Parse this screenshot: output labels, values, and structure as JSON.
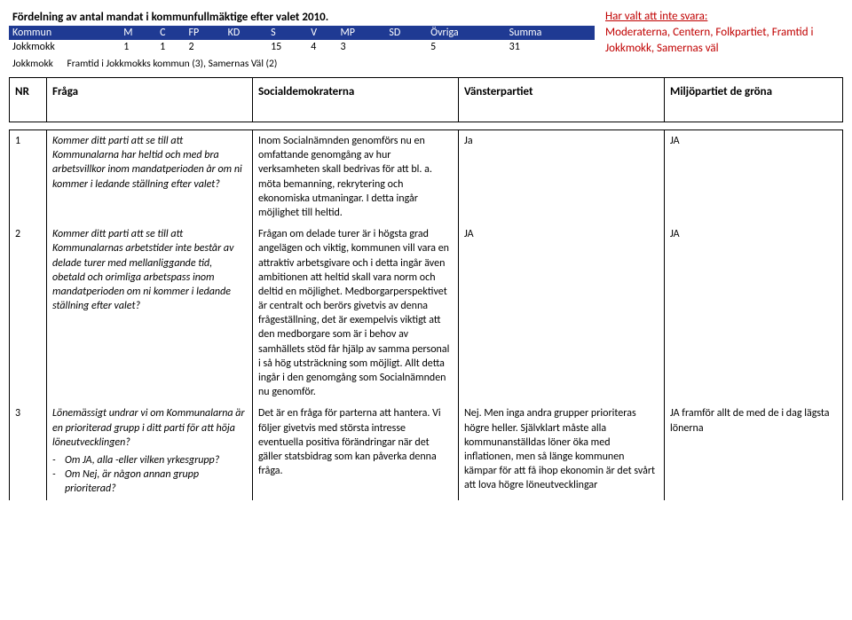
{
  "mandat": {
    "title": "Fördelning av antal mandat i kommunfullmäktige efter valet 2010.",
    "columns": [
      "Kommun",
      "M",
      "C",
      "FP",
      "KD",
      "S",
      "V",
      "MP",
      "SD",
      "Övriga",
      "Summa"
    ],
    "rows": [
      [
        "Jokkmokk",
        "1",
        "1",
        "2",
        "",
        "15",
        "4",
        "3",
        "",
        "5",
        "31"
      ]
    ],
    "note_label": "Jokkmokk",
    "note_text": "Framtid i Jokkmokks kommun (3), Samernas Väl (2)"
  },
  "notice": {
    "heading": "Har valt att inte svara:",
    "body": "Moderaterna, Centern, Folkpartiet, Framtid i Jokkmokk, Samernas väl"
  },
  "headers": {
    "nr": "NR",
    "q": "Fråga",
    "s": "Socialdemokraterna",
    "v": "Vänsterpartiet",
    "mp": "Miljöpartiet de gröna"
  },
  "rows": [
    {
      "nr": "1",
      "q": "Kommer ditt parti att se till att Kommunalarna har heltid och med bra arbetsvillkor inom mandatperioden år om ni kommer i ledande ställning efter valet?",
      "s": "Inom Socialnämnden genomförs nu en omfattande genomgång av hur verksamheten skall bedrivas för att bl. a. möta bemanning, rekrytering och ekonomiska utmaningar. I detta ingår möjlighet till heltid.",
      "v": "Ja",
      "mp": "JA"
    },
    {
      "nr": "2",
      "q": "Kommer ditt parti att se till att Kommunalarnas arbetstider inte består av delade turer med mellanliggande tid, obetald och orimliga arbetspass inom mandatperioden om ni kommer i ledande ställning efter valet?",
      "s": "Frågan om delade turer är i högsta grad angelägen och viktig, kommunen vill vara en attraktiv arbetsgivare och i detta ingår även ambitionen att heltid skall vara norm och deltid en möjlighet. Medborgarperspektivet är centralt och berörs givetvis av denna frågeställning, det är exempelvis viktigt att den medborgare som är i behov av samhällets stöd får hjälp av samma personal i så hög utsträckning som möjligt. Allt detta ingår i den genomgång som Socialnämnden nu genomför.",
      "v": "JA",
      "mp": "JA"
    },
    {
      "nr": "3",
      "q_main": "Lönemässigt undrar vi om Kommunalarna är en prioriterad grupp i ditt parti för att höja löneutvecklingen?",
      "q_sub1": "Om JA, alla -eller vilken yrkesgrupp?",
      "q_sub2": "Om Nej, är någon annan grupp prioriterad?",
      "s": "Det är en fråga för parterna att hantera. Vi följer givetvis med största intresse eventuella positiva förändringar när det gäller statsbidrag som kan påverka denna fråga.",
      "v": "Nej. Men inga andra grupper prioriteras högre heller.  Självklart måste alla kommunanställdas löner öka med inflationen, men så länge kommunen kämpar för att få ihop ekonomin är det svårt att lova högre löneutvecklingar",
      "mp": "JA framför allt de med de i dag lägsta lönerna"
    }
  ]
}
